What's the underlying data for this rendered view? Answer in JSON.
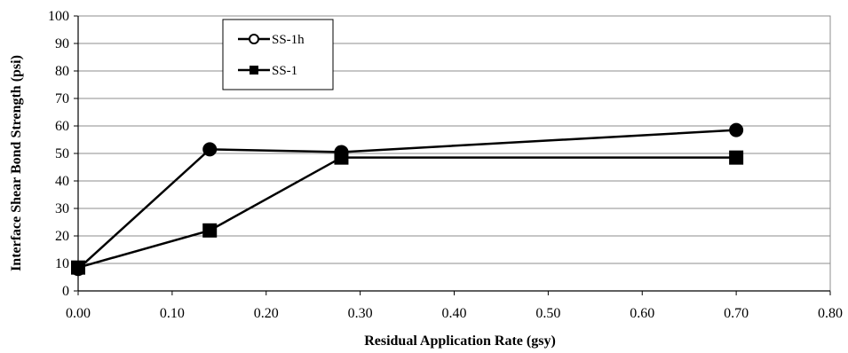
{
  "chart_data": {
    "type": "line",
    "title": "",
    "xlabel": "Residual Application Rate (gsy)",
    "ylabel": "Interface Shear Bond Strength (psi)",
    "xlim": [
      0,
      0.8
    ],
    "ylim": [
      0,
      100
    ],
    "x_ticks": [
      "0.00",
      "0.10",
      "0.20",
      "0.30",
      "0.40",
      "0.50",
      "0.60",
      "0.70",
      "0.80"
    ],
    "y_ticks": [
      "0",
      "10",
      "20",
      "30",
      "40",
      "50",
      "60",
      "70",
      "80",
      "90",
      "100"
    ],
    "grid": "horizontal",
    "legend_position": "top-left",
    "series": [
      {
        "name": "SS-1h",
        "marker": "circle",
        "color": "#000000",
        "points": [
          {
            "x": 0.0,
            "y": 8
          },
          {
            "x": 0.14,
            "y": 51.5
          },
          {
            "x": 0.28,
            "y": 50.5
          },
          {
            "x": 0.7,
            "y": 58.5
          }
        ]
      },
      {
        "name": "SS-1",
        "marker": "square",
        "color": "#000000",
        "points": [
          {
            "x": 0.0,
            "y": 8.5
          },
          {
            "x": 0.14,
            "y": 22
          },
          {
            "x": 0.28,
            "y": 48.5
          },
          {
            "x": 0.7,
            "y": 48.5
          }
        ]
      }
    ]
  }
}
